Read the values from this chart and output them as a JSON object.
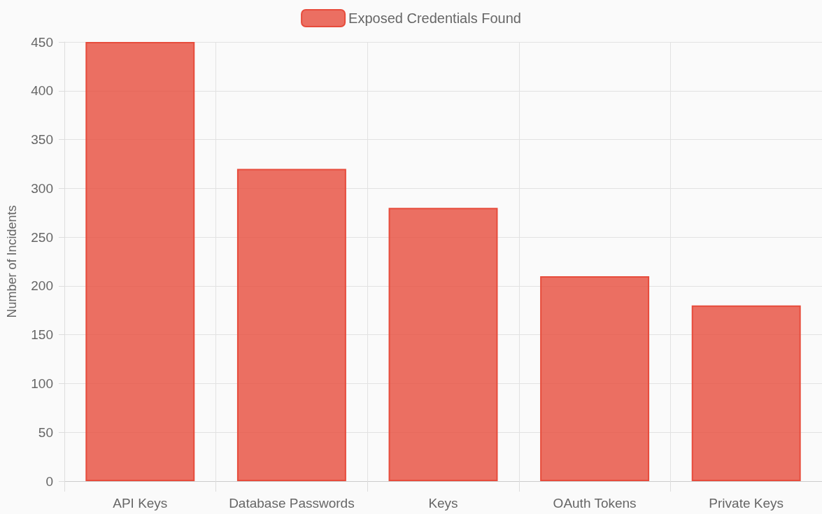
{
  "chart_data": {
    "type": "bar",
    "ylabel": "Number of Incidents",
    "categories": [
      "API Keys",
      "Database Passwords",
      "Keys",
      "OAuth Tokens",
      "Private Keys"
    ],
    "series": [
      {
        "name": "Exposed Credentials Found",
        "color": "#e74c3c",
        "values": [
          450,
          320,
          280,
          210,
          180
        ]
      }
    ],
    "ylim": [
      0,
      450
    ],
    "yticks": [
      0,
      50,
      100,
      150,
      200,
      250,
      300,
      350,
      400,
      450
    ],
    "grid": true,
    "legend": "top"
  }
}
